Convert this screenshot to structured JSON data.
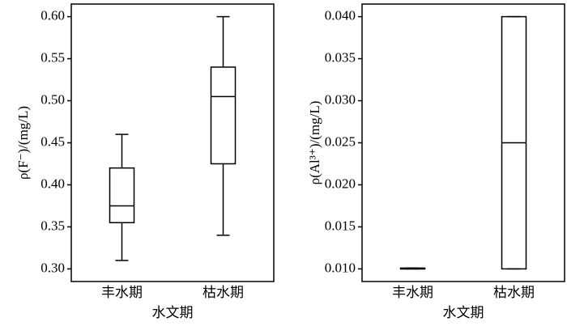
{
  "chart_data": [
    {
      "type": "box",
      "y_label": "ρ(F⁻)/(mg/L)",
      "x_label": "水文期",
      "categories": [
        "丰水期",
        "枯水期"
      ],
      "boxes": [
        {
          "min": 0.31,
          "q1": 0.355,
          "median": 0.375,
          "q3": 0.42,
          "max": 0.46
        },
        {
          "min": 0.34,
          "q1": 0.425,
          "median": 0.505,
          "q3": 0.54,
          "max": 0.6
        }
      ],
      "color": "#000000",
      "ylim": [
        0.285,
        0.615
      ],
      "yticks": [
        {
          "value": 0.3,
          "label": "0.30"
        },
        {
          "value": 0.35,
          "label": "0.35"
        },
        {
          "value": 0.4,
          "label": "0.40"
        },
        {
          "value": 0.45,
          "label": "0.45"
        },
        {
          "value": 0.5,
          "label": "0.50"
        },
        {
          "value": 0.55,
          "label": "0.55"
        },
        {
          "value": 0.6,
          "label": "0.60"
        }
      ]
    },
    {
      "type": "box",
      "y_label": "ρ(Al³⁺)/(mg/L)",
      "x_label": "水文期",
      "categories": [
        "丰水期",
        "枯水期"
      ],
      "boxes": [
        {
          "min": 0.01,
          "q1": 0.01,
          "median": 0.01,
          "q3": 0.0101,
          "max": 0.0101
        },
        {
          "min": 0.01,
          "q1": 0.01,
          "median": 0.025,
          "q3": 0.04,
          "max": 0.04
        }
      ],
      "color": "#000000",
      "ylim": [
        0.0085,
        0.0415
      ],
      "yticks": [
        {
          "value": 0.01,
          "label": "0.010"
        },
        {
          "value": 0.015,
          "label": "0.015"
        },
        {
          "value": 0.02,
          "label": "0.020"
        },
        {
          "value": 0.025,
          "label": "0.025"
        },
        {
          "value": 0.03,
          "label": "0.030"
        },
        {
          "value": 0.035,
          "label": "0.035"
        },
        {
          "value": 0.04,
          "label": "0.040"
        }
      ]
    }
  ]
}
